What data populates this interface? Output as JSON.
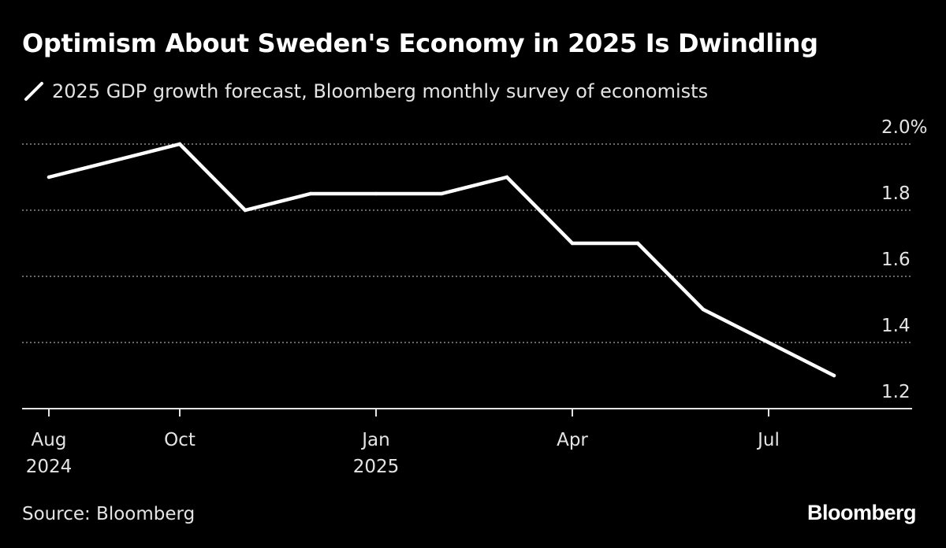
{
  "colors": {
    "background": "#000000",
    "line": "#ffffff",
    "grid": "#8a8a8a",
    "text": "#e4e4e4"
  },
  "chart_data": {
    "type": "line",
    "title": "Optimism About Sweden's Economy in 2025 Is Dwindling",
    "series": [
      {
        "name": "2025 GDP growth forecast, Bloomberg monthly survey of economists",
        "x": [
          "Aug 2024",
          "Sep 2024",
          "Oct 2024",
          "Nov 2024",
          "Dec 2024",
          "Jan 2025",
          "Feb 2025",
          "Mar 2025",
          "Apr 2025",
          "May 2025",
          "Jun 2025",
          "Jul 2025",
          "Aug 2025"
        ],
        "values": [
          1.9,
          1.95,
          2.0,
          1.8,
          1.85,
          1.85,
          1.85,
          1.9,
          1.7,
          1.7,
          1.5,
          1.4,
          1.3
        ]
      }
    ],
    "ylim": [
      1.2,
      2.0
    ],
    "yticks": [
      {
        "value": 2.0,
        "label": "2.0%"
      },
      {
        "value": 1.8,
        "label": "1.8"
      },
      {
        "value": 1.6,
        "label": "1.6"
      },
      {
        "value": 1.4,
        "label": "1.4"
      },
      {
        "value": 1.2,
        "label": "1.2"
      }
    ],
    "xticks": [
      {
        "index": 0,
        "label": "Aug",
        "sublabel": "2024"
      },
      {
        "index": 2,
        "label": "Oct",
        "sublabel": ""
      },
      {
        "index": 5,
        "label": "Jan",
        "sublabel": "2025"
      },
      {
        "index": 8,
        "label": "Apr",
        "sublabel": ""
      },
      {
        "index": 11,
        "label": "Jul",
        "sublabel": ""
      }
    ],
    "xlabel": "",
    "ylabel": "",
    "grid": true,
    "y_axis_side": "right"
  },
  "legend": {
    "label": "2025 GDP growth forecast, Bloomberg monthly survey of economists",
    "icon": "line-swatch-icon"
  },
  "footer": {
    "source": "Source: Bloomberg",
    "brand": "Bloomberg"
  }
}
